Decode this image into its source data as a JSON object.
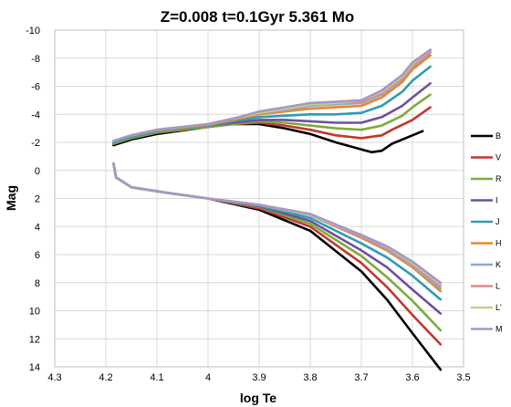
{
  "chart_data": {
    "type": "line",
    "title": "Z=0.008   t=0.1Gyr   5.361 Mo",
    "xlabel": "log Te",
    "ylabel": "Mag",
    "xlim": [
      4.3,
      3.5
    ],
    "ylim": [
      14,
      -10
    ],
    "x_ticks": [
      "4.3",
      "4.2",
      "4.1",
      "4",
      "3.9",
      "3.8",
      "3.7",
      "3.6",
      "3.5"
    ],
    "y_ticks": [
      "-10",
      "-8",
      "-6",
      "-4",
      "-2",
      "0",
      "2",
      "4",
      "6",
      "8",
      "10",
      "12",
      "14"
    ],
    "x_reversed": true,
    "y_reversed": true,
    "grid": true,
    "legend_position": "right",
    "series": [
      {
        "name": "B",
        "color": "#000000",
        "lower": [
          [
            4.185,
            -0.5
          ],
          [
            4.18,
            0.5
          ],
          [
            4.15,
            1.2
          ],
          [
            4.08,
            1.6
          ],
          [
            4.0,
            2.0
          ],
          [
            3.9,
            2.8
          ],
          [
            3.8,
            4.3
          ],
          [
            3.7,
            7.2
          ],
          [
            3.65,
            9.2
          ],
          [
            3.6,
            11.6
          ],
          [
            3.545,
            14.2
          ]
        ],
        "upper": [
          [
            4.185,
            -1.8
          ],
          [
            4.15,
            -2.2
          ],
          [
            4.1,
            -2.6
          ],
          [
            4.0,
            -3.1
          ],
          [
            3.95,
            -3.3
          ],
          [
            3.9,
            -3.3
          ],
          [
            3.85,
            -3.0
          ],
          [
            3.8,
            -2.6
          ],
          [
            3.75,
            -2.0
          ],
          [
            3.7,
            -1.5
          ],
          [
            3.68,
            -1.3
          ],
          [
            3.66,
            -1.4
          ],
          [
            3.64,
            -1.9
          ],
          [
            3.62,
            -2.2
          ],
          [
            3.58,
            -2.8
          ]
        ]
      },
      {
        "name": "V",
        "color": "#c0392b",
        "lower": [
          [
            4.185,
            -0.5
          ],
          [
            4.18,
            0.5
          ],
          [
            4.15,
            1.2
          ],
          [
            4.08,
            1.6
          ],
          [
            4.0,
            2.0
          ],
          [
            3.9,
            2.7
          ],
          [
            3.8,
            4.0
          ],
          [
            3.7,
            6.6
          ],
          [
            3.65,
            8.3
          ],
          [
            3.6,
            10.3
          ],
          [
            3.545,
            12.4
          ]
        ],
        "upper": [
          [
            4.185,
            -1.9
          ],
          [
            4.15,
            -2.3
          ],
          [
            4.1,
            -2.7
          ],
          [
            4.0,
            -3.1
          ],
          [
            3.95,
            -3.3
          ],
          [
            3.9,
            -3.4
          ],
          [
            3.85,
            -3.2
          ],
          [
            3.8,
            -2.9
          ],
          [
            3.75,
            -2.5
          ],
          [
            3.7,
            -2.3
          ],
          [
            3.66,
            -2.5
          ],
          [
            3.64,
            -2.9
          ],
          [
            3.6,
            -3.6
          ],
          [
            3.565,
            -4.5
          ]
        ]
      },
      {
        "name": "R",
        "color": "#7cab3b",
        "lower": [
          [
            4.185,
            -0.5
          ],
          [
            4.18,
            0.5
          ],
          [
            4.15,
            1.2
          ],
          [
            4.08,
            1.6
          ],
          [
            4.0,
            2.0
          ],
          [
            3.9,
            2.6
          ],
          [
            3.8,
            3.8
          ],
          [
            3.7,
            6.1
          ],
          [
            3.65,
            7.6
          ],
          [
            3.6,
            9.3
          ],
          [
            3.545,
            11.4
          ]
        ],
        "upper": [
          [
            4.185,
            -1.9
          ],
          [
            4.15,
            -2.3
          ],
          [
            4.1,
            -2.7
          ],
          [
            4.0,
            -3.1
          ],
          [
            3.95,
            -3.3
          ],
          [
            3.9,
            -3.5
          ],
          [
            3.85,
            -3.4
          ],
          [
            3.8,
            -3.2
          ],
          [
            3.75,
            -3.0
          ],
          [
            3.7,
            -2.9
          ],
          [
            3.66,
            -3.2
          ],
          [
            3.62,
            -3.9
          ],
          [
            3.6,
            -4.5
          ],
          [
            3.565,
            -5.4
          ]
        ]
      },
      {
        "name": "I",
        "color": "#6e4f9e",
        "lower": [
          [
            4.185,
            -0.5
          ],
          [
            4.18,
            0.5
          ],
          [
            4.15,
            1.2
          ],
          [
            4.08,
            1.6
          ],
          [
            4.0,
            2.0
          ],
          [
            3.9,
            2.55
          ],
          [
            3.8,
            3.6
          ],
          [
            3.7,
            5.7
          ],
          [
            3.65,
            6.9
          ],
          [
            3.6,
            8.5
          ],
          [
            3.545,
            10.2
          ]
        ],
        "upper": [
          [
            4.185,
            -2.0
          ],
          [
            4.15,
            -2.4
          ],
          [
            4.1,
            -2.8
          ],
          [
            4.0,
            -3.2
          ],
          [
            3.95,
            -3.4
          ],
          [
            3.9,
            -3.6
          ],
          [
            3.85,
            -3.6
          ],
          [
            3.8,
            -3.5
          ],
          [
            3.75,
            -3.4
          ],
          [
            3.7,
            -3.4
          ],
          [
            3.66,
            -3.8
          ],
          [
            3.62,
            -4.6
          ],
          [
            3.6,
            -5.2
          ],
          [
            3.565,
            -6.2
          ]
        ]
      },
      {
        "name": "J",
        "color": "#2e9bb5",
        "lower": [
          [
            4.185,
            -0.5
          ],
          [
            4.18,
            0.5
          ],
          [
            4.15,
            1.2
          ],
          [
            4.08,
            1.6
          ],
          [
            4.0,
            2.0
          ],
          [
            3.9,
            2.5
          ],
          [
            3.8,
            3.4
          ],
          [
            3.7,
            5.2
          ],
          [
            3.65,
            6.2
          ],
          [
            3.6,
            7.5
          ],
          [
            3.545,
            9.2
          ]
        ],
        "upper": [
          [
            4.185,
            -2.0
          ],
          [
            4.15,
            -2.4
          ],
          [
            4.1,
            -2.8
          ],
          [
            4.0,
            -3.2
          ],
          [
            3.95,
            -3.5
          ],
          [
            3.9,
            -3.8
          ],
          [
            3.85,
            -3.9
          ],
          [
            3.8,
            -4.0
          ],
          [
            3.75,
            -4.0
          ],
          [
            3.7,
            -4.1
          ],
          [
            3.66,
            -4.6
          ],
          [
            3.62,
            -5.6
          ],
          [
            3.6,
            -6.4
          ],
          [
            3.565,
            -7.4
          ]
        ]
      },
      {
        "name": "H",
        "color": "#e5882b",
        "lower": [
          [
            4.185,
            -0.5
          ],
          [
            4.18,
            0.5
          ],
          [
            4.15,
            1.2
          ],
          [
            4.08,
            1.6
          ],
          [
            4.0,
            2.0
          ],
          [
            3.9,
            2.45
          ],
          [
            3.8,
            3.2
          ],
          [
            3.7,
            4.8
          ],
          [
            3.65,
            5.7
          ],
          [
            3.6,
            6.9
          ],
          [
            3.545,
            8.6
          ]
        ],
        "upper": [
          [
            4.185,
            -2.1
          ],
          [
            4.15,
            -2.5
          ],
          [
            4.1,
            -2.85
          ],
          [
            4.0,
            -3.25
          ],
          [
            3.95,
            -3.6
          ],
          [
            3.9,
            -4.0
          ],
          [
            3.85,
            -4.2
          ],
          [
            3.8,
            -4.4
          ],
          [
            3.75,
            -4.5
          ],
          [
            3.7,
            -4.6
          ],
          [
            3.66,
            -5.2
          ],
          [
            3.62,
            -6.3
          ],
          [
            3.6,
            -7.2
          ],
          [
            3.565,
            -8.2
          ]
        ]
      },
      {
        "name": "K",
        "color": "#8ea6d2",
        "lower": [
          [
            4.185,
            -0.5
          ],
          [
            4.18,
            0.5
          ],
          [
            4.15,
            1.2
          ],
          [
            4.08,
            1.6
          ],
          [
            4.0,
            2.0
          ],
          [
            3.9,
            2.45
          ],
          [
            3.8,
            3.2
          ],
          [
            3.7,
            4.7
          ],
          [
            3.65,
            5.6
          ],
          [
            3.6,
            6.8
          ],
          [
            3.545,
            8.4
          ]
        ],
        "upper": [
          [
            4.185,
            -2.1
          ],
          [
            4.15,
            -2.5
          ],
          [
            4.1,
            -2.9
          ],
          [
            4.0,
            -3.3
          ],
          [
            3.95,
            -3.7
          ],
          [
            3.9,
            -4.1
          ],
          [
            3.85,
            -4.3
          ],
          [
            3.8,
            -4.6
          ],
          [
            3.75,
            -4.7
          ],
          [
            3.7,
            -4.8
          ],
          [
            3.66,
            -5.4
          ],
          [
            3.62,
            -6.5
          ],
          [
            3.6,
            -7.4
          ],
          [
            3.565,
            -8.4
          ]
        ]
      },
      {
        "name": "L",
        "color": "#e48a87",
        "lower": [
          [
            4.185,
            -0.5
          ],
          [
            4.18,
            0.5
          ],
          [
            4.15,
            1.2
          ],
          [
            4.08,
            1.6
          ],
          [
            4.0,
            2.0
          ],
          [
            3.9,
            2.45
          ],
          [
            3.8,
            3.15
          ],
          [
            3.7,
            4.65
          ],
          [
            3.65,
            5.5
          ],
          [
            3.6,
            6.7
          ],
          [
            3.545,
            8.2
          ]
        ],
        "upper": [
          [
            4.185,
            -2.1
          ],
          [
            4.15,
            -2.5
          ],
          [
            4.1,
            -2.9
          ],
          [
            4.0,
            -3.3
          ],
          [
            3.95,
            -3.7
          ],
          [
            3.9,
            -4.1
          ],
          [
            3.85,
            -4.4
          ],
          [
            3.8,
            -4.7
          ],
          [
            3.75,
            -4.8
          ],
          [
            3.7,
            -4.9
          ],
          [
            3.66,
            -5.5
          ],
          [
            3.62,
            -6.6
          ],
          [
            3.6,
            -7.5
          ],
          [
            3.565,
            -8.5
          ]
        ]
      },
      {
        "name": "L'",
        "color": "#bcd58a",
        "lower": [
          [
            4.185,
            -0.5
          ],
          [
            4.18,
            0.5
          ],
          [
            4.15,
            1.2
          ],
          [
            4.08,
            1.6
          ],
          [
            4.0,
            2.0
          ],
          [
            3.9,
            2.45
          ],
          [
            3.8,
            3.15
          ],
          [
            3.7,
            4.6
          ],
          [
            3.65,
            5.45
          ],
          [
            3.6,
            6.6
          ],
          [
            3.545,
            8.1
          ]
        ],
        "upper": [
          [
            4.185,
            -2.1
          ],
          [
            4.15,
            -2.5
          ],
          [
            4.1,
            -2.9
          ],
          [
            4.0,
            -3.3
          ],
          [
            3.95,
            -3.7
          ],
          [
            3.9,
            -4.1
          ],
          [
            3.85,
            -4.4
          ],
          [
            3.8,
            -4.7
          ],
          [
            3.75,
            -4.8
          ],
          [
            3.7,
            -5.0
          ],
          [
            3.66,
            -5.6
          ],
          [
            3.62,
            -6.7
          ],
          [
            3.6,
            -7.6
          ],
          [
            3.565,
            -8.6
          ]
        ]
      },
      {
        "name": "M",
        "color": "#a796c7",
        "lower": [
          [
            4.185,
            -0.5
          ],
          [
            4.18,
            0.5
          ],
          [
            4.15,
            1.2
          ],
          [
            4.08,
            1.6
          ],
          [
            4.0,
            2.0
          ],
          [
            3.9,
            2.45
          ],
          [
            3.8,
            3.1
          ],
          [
            3.7,
            4.6
          ],
          [
            3.65,
            5.4
          ],
          [
            3.6,
            6.5
          ],
          [
            3.545,
            8.0
          ]
        ],
        "upper": [
          [
            4.185,
            -2.1
          ],
          [
            4.15,
            -2.5
          ],
          [
            4.1,
            -2.9
          ],
          [
            4.0,
            -3.3
          ],
          [
            3.95,
            -3.7
          ],
          [
            3.9,
            -4.2
          ],
          [
            3.85,
            -4.5
          ],
          [
            3.8,
            -4.8
          ],
          [
            3.75,
            -4.9
          ],
          [
            3.7,
            -5.0
          ],
          [
            3.66,
            -5.7
          ],
          [
            3.62,
            -6.8
          ],
          [
            3.6,
            -7.7
          ],
          [
            3.565,
            -8.6
          ]
        ]
      }
    ]
  }
}
